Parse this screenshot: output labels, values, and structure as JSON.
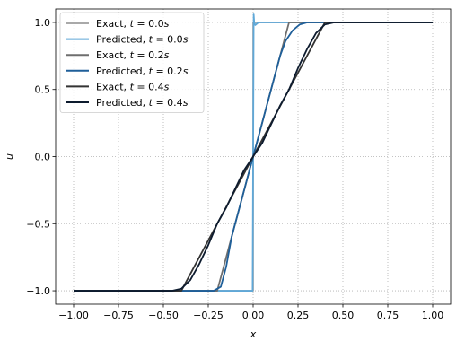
{
  "chart_data": {
    "type": "line",
    "xlabel": "x",
    "ylabel": "u",
    "xlim": [
      -1.1,
      1.1
    ],
    "ylim": [
      -1.1,
      1.1
    ],
    "x_ticks": [
      -1.0,
      -0.75,
      -0.5,
      -0.25,
      0.0,
      0.25,
      0.5,
      0.75,
      1.0
    ],
    "x_tick_labels": [
      "−1.00",
      "−0.75",
      "−0.50",
      "−0.25",
      "0.00",
      "0.25",
      "0.50",
      "0.75",
      "1.00"
    ],
    "y_ticks": [
      -1.0,
      -0.5,
      0.0,
      0.5,
      1.0
    ],
    "y_tick_labels": [
      "−1.0",
      "−0.5",
      "0.0",
      "0.5",
      "1.0"
    ],
    "grid": true,
    "legend_position": "top-left",
    "series": [
      {
        "name": "Exact, t = 0.0s",
        "legend_prefix": "Exact, ",
        "t_value": "0.0",
        "color": "#a9a9a9",
        "x": [
          -1.0,
          0.0,
          0.0,
          1.0
        ],
        "y": [
          -1.0,
          -1.0,
          1.0,
          1.0
        ]
      },
      {
        "name": "Predicted, t = 0.0s",
        "legend_prefix": "Predicted, ",
        "t_value": "0.0",
        "color": "#5fa8d8",
        "x": [
          -1.0,
          -0.01,
          -0.003,
          0.0,
          0.003,
          0.006,
          0.012,
          0.03,
          1.0
        ],
        "y": [
          -1.0,
          -1.0,
          -1.0,
          0.0,
          1.06,
          1.0,
          0.98,
          1.0,
          1.0
        ]
      },
      {
        "name": "Exact, t = 0.2s",
        "legend_prefix": "Exact, ",
        "t_value": "0.2",
        "color": "#6e6e6e",
        "x": [
          -1.0,
          -0.2,
          0.2,
          1.0
        ],
        "y": [
          -1.0,
          -1.0,
          1.0,
          1.0
        ]
      },
      {
        "name": "Predicted, t = 0.2s",
        "legend_prefix": "Predicted, ",
        "t_value": "0.2",
        "color": "#1f5f99",
        "x": [
          -1.0,
          -0.22,
          -0.18,
          -0.15,
          -0.12,
          -0.08,
          -0.04,
          0.0,
          0.04,
          0.08,
          0.12,
          0.15,
          0.18,
          0.22,
          0.26,
          0.3,
          1.0
        ],
        "y": [
          -1.0,
          -1.0,
          -0.97,
          -0.82,
          -0.6,
          -0.4,
          -0.2,
          0.0,
          0.2,
          0.4,
          0.6,
          0.75,
          0.86,
          0.94,
          0.985,
          1.0,
          1.0
        ]
      },
      {
        "name": "Exact, t = 0.4s",
        "legend_prefix": "Exact, ",
        "t_value": "0.4",
        "color": "#333333",
        "x": [
          -1.0,
          -0.4,
          0.4,
          1.0
        ],
        "y": [
          -1.0,
          -1.0,
          1.0,
          1.0
        ]
      },
      {
        "name": "Predicted, t = 0.4s",
        "legend_prefix": "Predicted, ",
        "t_value": "0.4",
        "color": "#0d1b2e",
        "x": [
          -1.0,
          -0.45,
          -0.4,
          -0.35,
          -0.3,
          -0.25,
          -0.2,
          -0.15,
          -0.1,
          -0.05,
          0.0,
          0.05,
          0.1,
          0.15,
          0.2,
          0.25,
          0.3,
          0.35,
          0.4,
          0.45,
          0.5,
          1.0
        ],
        "y": [
          -1.0,
          -1.0,
          -0.985,
          -0.92,
          -0.8,
          -0.66,
          -0.5,
          -0.38,
          -0.24,
          -0.1,
          0.0,
          0.1,
          0.24,
          0.38,
          0.5,
          0.66,
          0.8,
          0.92,
          0.985,
          1.0,
          1.0,
          1.0
        ]
      }
    ]
  }
}
